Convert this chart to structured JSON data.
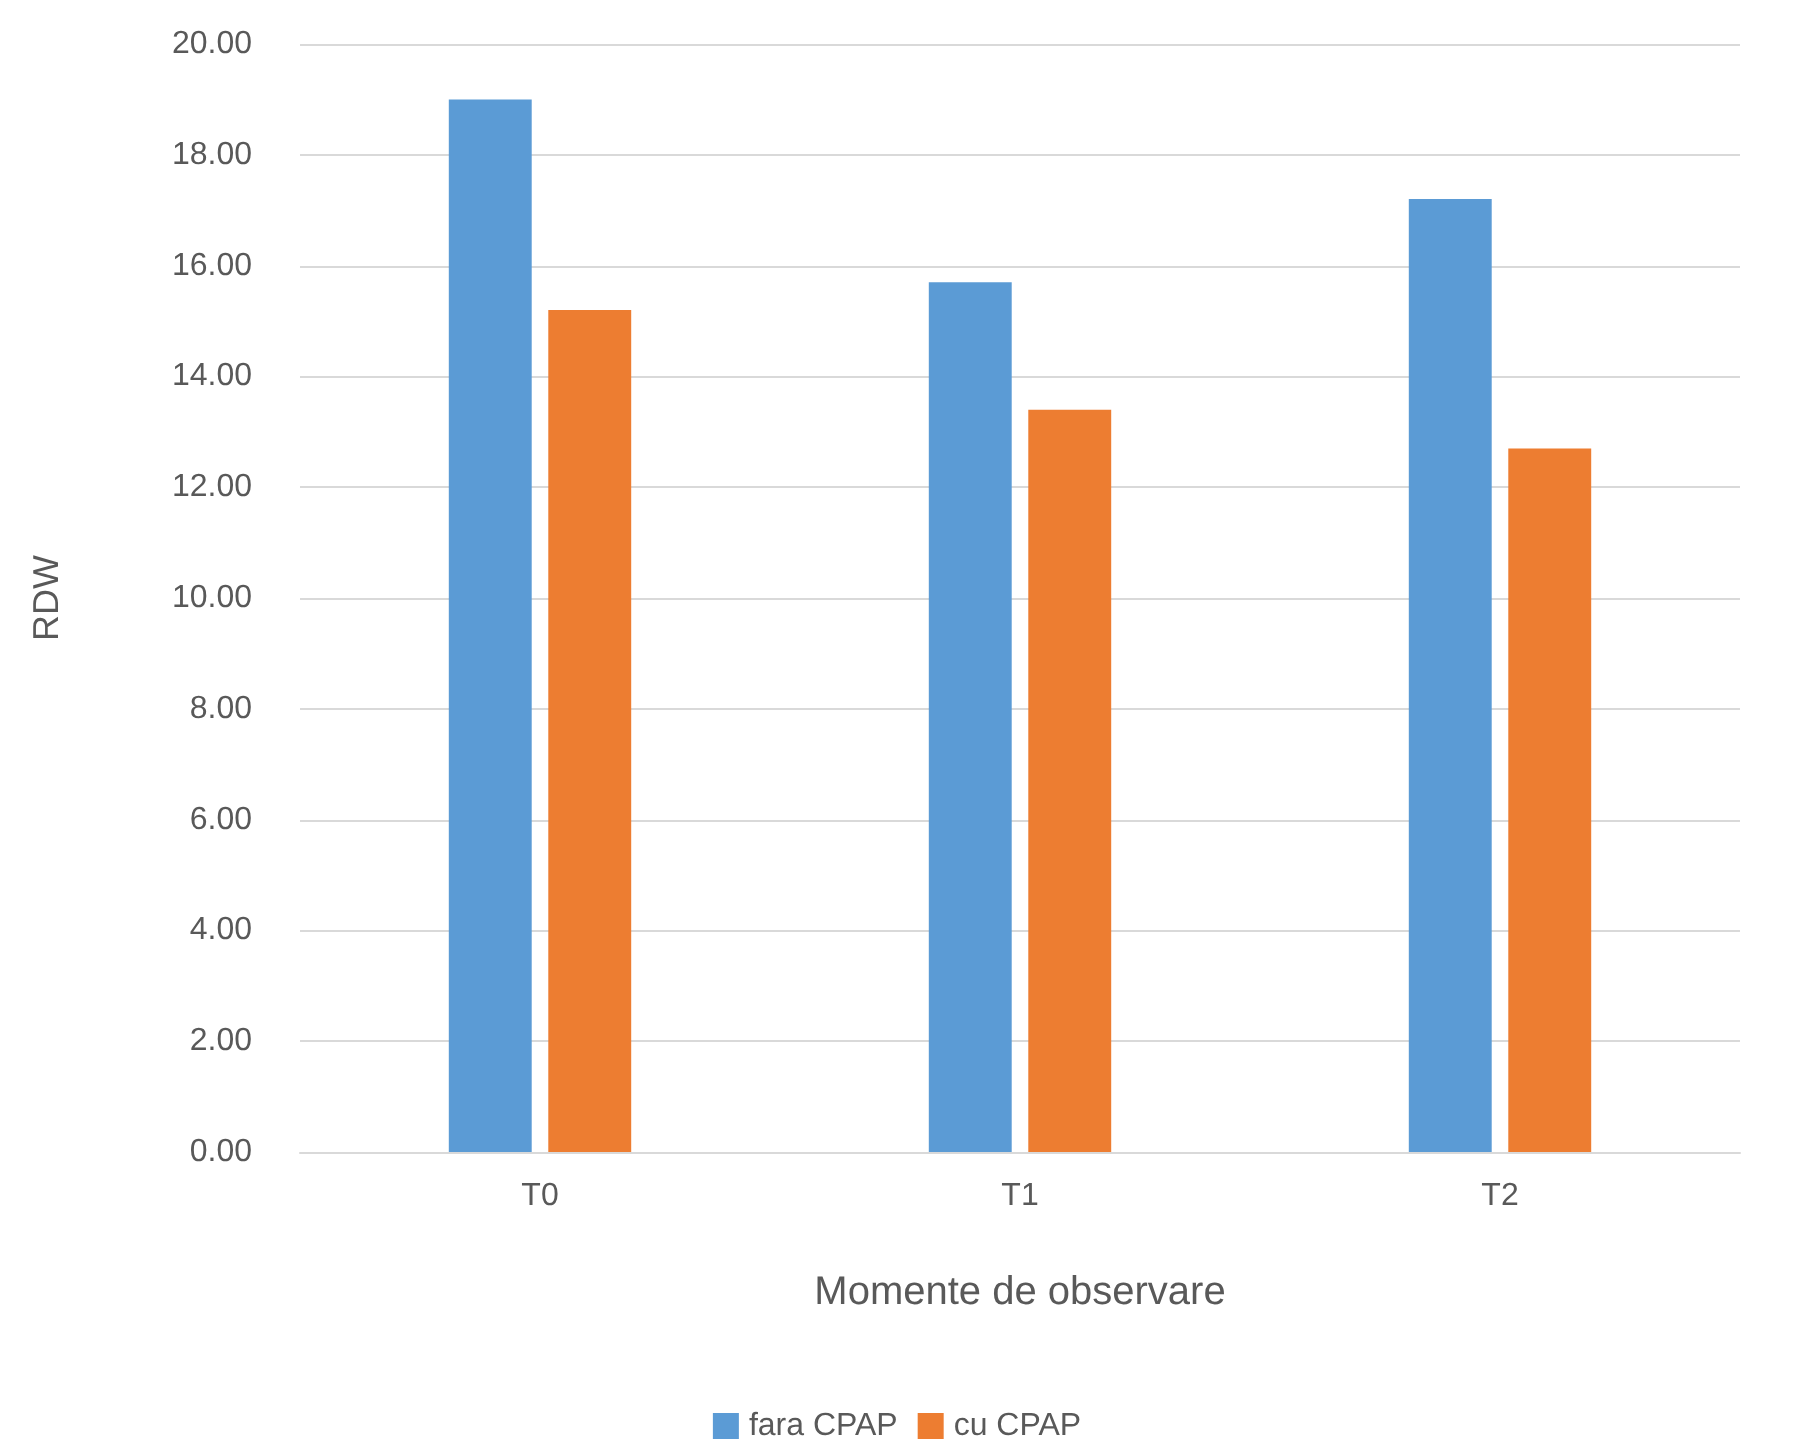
{
  "chart_data": {
    "type": "bar",
    "xlabel": "Momente de observare",
    "ylabel": "RDW",
    "categories": [
      "T0",
      "T1",
      "T2"
    ],
    "series": [
      {
        "name": "fara CPAP",
        "color": "#5b9bd5",
        "values": [
          19.0,
          15.7,
          17.2
        ]
      },
      {
        "name": "cu CPAP",
        "color": "#ed7d31",
        "values": [
          15.2,
          13.4,
          12.7
        ]
      }
    ],
    "ylim": [
      0,
      20
    ],
    "yticks": [
      {
        "value": 0,
        "label": "0.00"
      },
      {
        "value": 2,
        "label": "2.00"
      },
      {
        "value": 4,
        "label": "4.00"
      },
      {
        "value": 6,
        "label": "6.00"
      },
      {
        "value": 8,
        "label": "8.00"
      },
      {
        "value": 10,
        "label": "10.00"
      },
      {
        "value": 12,
        "label": "12.00"
      },
      {
        "value": 14,
        "label": "14.00"
      },
      {
        "value": 16,
        "label": "16.00"
      },
      {
        "value": 18,
        "label": "18.00"
      },
      {
        "value": 20,
        "label": "20.00"
      }
    ],
    "grid": "y",
    "legend": "bottom"
  }
}
